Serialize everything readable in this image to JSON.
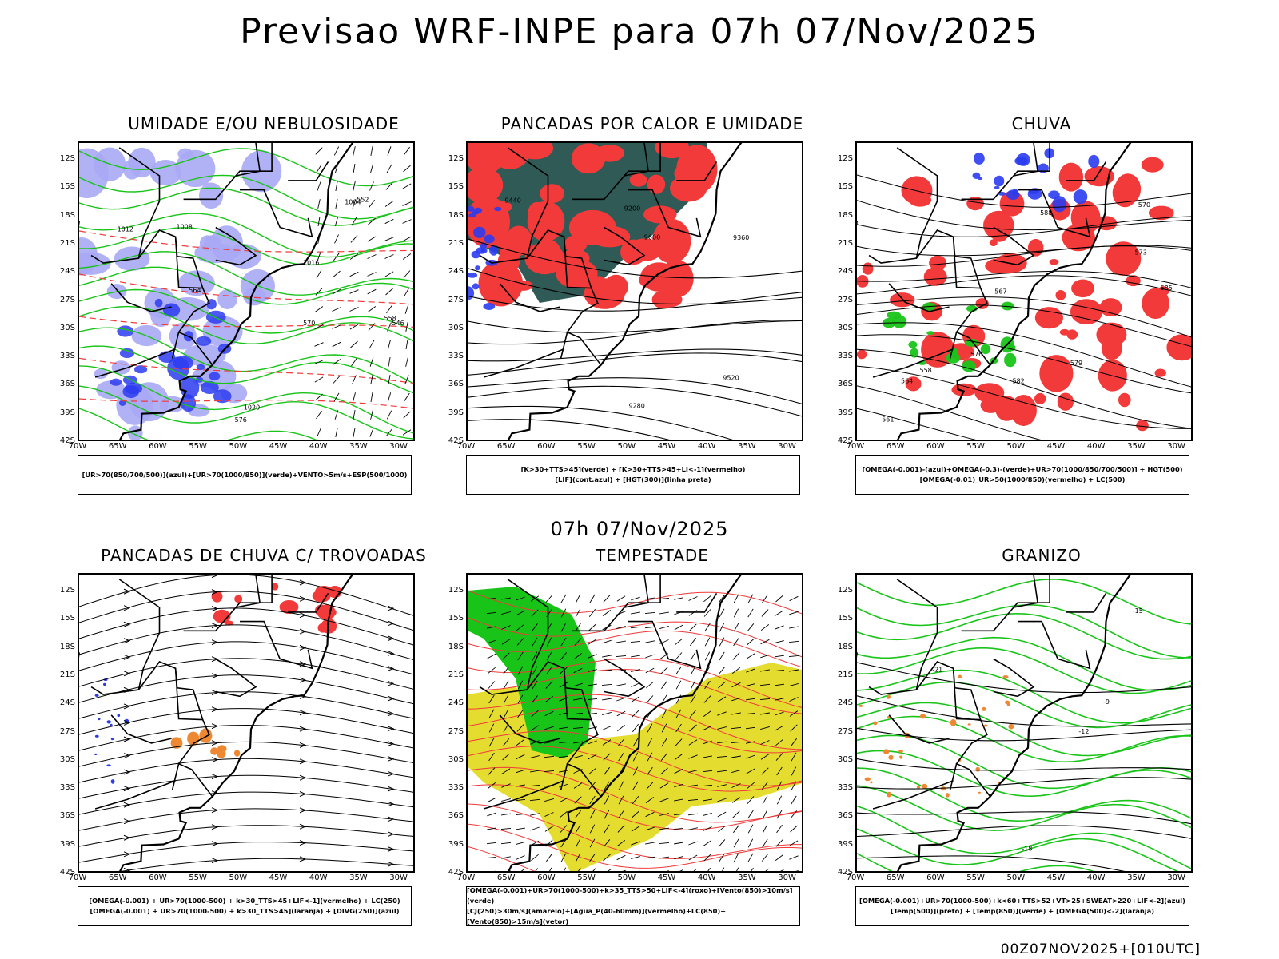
{
  "title": "Previsao WRF-INPE  para 07h 07/Nov/2025",
  "mid_title": "07h 07/Nov/2025",
  "footer": "00Z07NOV2025+[010UTC]",
  "lat_labels": [
    "12S",
    "15S",
    "18S",
    "21S",
    "24S",
    "27S",
    "30S",
    "33S",
    "36S",
    "39S",
    "42S"
  ],
  "lon_labels": [
    "70W",
    "65W",
    "60W",
    "55W",
    "50W",
    "45W",
    "40W",
    "35W",
    "30W"
  ],
  "colors": {
    "red": "#f23a3a",
    "green": "#19c419",
    "blue": "#2b3cf0",
    "lavender": "#a9a8f5",
    "darkteal": "#2f5a55",
    "yellow": "#e5dc30",
    "orange": "#ee8833"
  },
  "panels": [
    {
      "title": "UMIDADE E/OU NEBULOSIDADE",
      "legend": [
        "[UR>70(850/700/500)](azul)+[UR>70(1000/850)](verde)+VENTO>5m/s+ESP(500/1000)"
      ],
      "contour_labels": [
        "1012",
        "1008",
        "1016",
        "1020",
        "1004",
        "576",
        "570",
        "564",
        "552",
        "546",
        "558"
      ]
    },
    {
      "title": "PANCADAS POR CALOR E UMIDADE",
      "legend": [
        "[K>30+TTS>45](verde) + [K>30+TTS>45+LI<-1](vermelho)",
        "[LIF](cont.azul) + [HGT(300)](linha preta)"
      ],
      "contour_labels": [
        "9600",
        "9520",
        "9440",
        "9360",
        "9280",
        "9200"
      ]
    },
    {
      "title": "CHUVA",
      "legend": [
        "[OMEGA(-0.001)-(azul)+OMEGA(-0.3)-(verde)+UR>70(1000/850/700/500)] + HGT(500)",
        "[OMEGA(-0.01)_UR>50(1000/850)(vermelho) + LC(500)"
      ],
      "contour_labels": [
        "585",
        "588",
        "582",
        "579",
        "576",
        "573",
        "570",
        "567",
        "564",
        "561",
        "558"
      ]
    },
    {
      "title": "PANCADAS DE CHUVA C/ TROVOADAS",
      "legend": [
        "[OMEGA(-0.001) + UR>70(1000-500) + k>30_TTS>45+LIF<-1](vermelho) + LC(250)",
        "[OMEGA(-0.001) + UR>70(1000-500) + k>30_TTS>45](laranja) + [DIVG(250)](azul)"
      ],
      "contour_labels": []
    },
    {
      "title": "TEMPESTADE",
      "legend": [
        "[OMEGA(-0.001)+UR>70(1000-500)+k>35_TTS>50+LIF<-4](roxo)+[Vento(850)>10m/s](verde)",
        "[CJ(250)>30m/s](amarelo)+[Agua_P(40-60mm)](vermelho)+LC(850)+[Vento(850)>15m/s](vetor)"
      ],
      "contour_labels": []
    },
    {
      "title": "GRANIZO",
      "legend": [
        "[OMEGA(-0.001)+UR>70(1000-500)+k<60+TTS>52+VT>25+SWEAT>220+LIF<-2](azul)",
        "[Temp(500)](preto) + [Temp(850)](verde) + [OMEGA(500)<-2](laranja)"
      ],
      "contour_labels": [
        "-12",
        "-15",
        "-18",
        "-21",
        "-9"
      ]
    }
  ]
}
